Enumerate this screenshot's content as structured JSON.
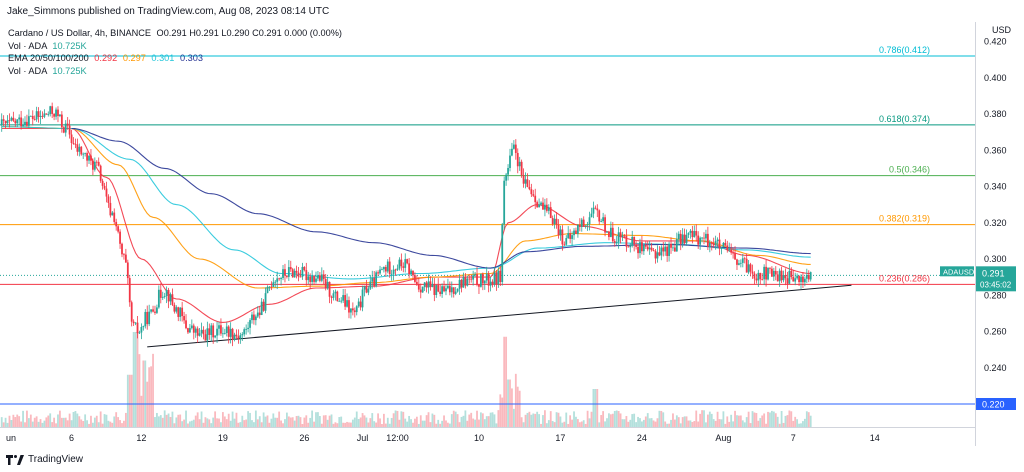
{
  "header": {
    "published_by": "Jake_Simmons published on TradingView.com, Aug 08, 2023 08:14 UTC"
  },
  "legend": {
    "symbol_line": "Cardano / US Dollar, 4h, BINANCE",
    "ohlc": "O0.291 H0.291 L0.290 C0.291 0.000 (0.00%)",
    "vol_label": "Vol · ADA",
    "vol_value": "10.725K",
    "ema_label": "EMA 20/50/100/200",
    "ema_values": [
      "0.292",
      "0.297",
      "0.301",
      "0.303"
    ],
    "vol2_label": "Vol · ADA",
    "vol2_value": "10.725K"
  },
  "footer": {
    "brand": "TradingView"
  },
  "chart_data": {
    "type": "candlestick",
    "symbol": "ADAUSD",
    "timeframe": "4h",
    "currency_label": "USD",
    "y_ticks": [
      0.22,
      0.24,
      0.26,
      0.28,
      0.3,
      0.32,
      0.34,
      0.36,
      0.38,
      0.4,
      0.42
    ],
    "ylim": [
      0.208,
      0.424
    ],
    "x_ticks": [
      "un",
      "6",
      "12",
      "19",
      "26",
      "Jul",
      "12:00",
      "10",
      "17",
      "24",
      "Aug",
      "7",
      "14"
    ],
    "x_tick_days": [
      0,
      4,
      10,
      17,
      24,
      29,
      32,
      39,
      46,
      53,
      60,
      66,
      73
    ],
    "x_last_day": 67.5,
    "x_range_days": [
      -2.2,
      83.8
    ],
    "last_price": {
      "label": "ADAUSD",
      "value": "0.291",
      "countdown": "03:45:02",
      "color": "#26a69a"
    },
    "support_line": {
      "value": "0.220",
      "color": "#2962ff"
    },
    "fibonacci": [
      {
        "label": "0.786(0.412)",
        "value": 0.412,
        "color": "#00bcd4"
      },
      {
        "label": "0.618(0.374)",
        "value": 0.374,
        "color": "#089981"
      },
      {
        "label": "0.5(0.346)",
        "value": 0.346,
        "color": "#4caf50"
      },
      {
        "label": "0.382(0.319)",
        "value": 0.319,
        "color": "#ff9800"
      },
      {
        "label": "0.236(0.286)",
        "value": 0.286,
        "color": "#f23645"
      }
    ],
    "trendline": {
      "from": [
        10.5,
        0.2515
      ],
      "to": [
        71.0,
        0.2855
      ]
    },
    "price_path": [
      [
        -2,
        0.374
      ],
      [
        1,
        0.378
      ],
      [
        2.5,
        0.381
      ],
      [
        3.5,
        0.372
      ],
      [
        4.5,
        0.36
      ],
      [
        6,
        0.352
      ],
      [
        7.5,
        0.325
      ],
      [
        8.5,
        0.3
      ],
      [
        9.3,
        0.262
      ],
      [
        9.8,
        0.26
      ],
      [
        10.5,
        0.268
      ],
      [
        12,
        0.283
      ],
      [
        13,
        0.272
      ],
      [
        14,
        0.262
      ],
      [
        15,
        0.258
      ],
      [
        17,
        0.261
      ],
      [
        18.5,
        0.258
      ],
      [
        20,
        0.27
      ],
      [
        21.5,
        0.29
      ],
      [
        23,
        0.293
      ],
      [
        25,
        0.29
      ],
      [
        27,
        0.278
      ],
      [
        28.3,
        0.27
      ],
      [
        29.5,
        0.285
      ],
      [
        31,
        0.295
      ],
      [
        32.5,
        0.297
      ],
      [
        34,
        0.285
      ],
      [
        36,
        0.282
      ],
      [
        38,
        0.288
      ],
      [
        40,
        0.288
      ],
      [
        40.8,
        0.29
      ],
      [
        41.2,
        0.345
      ],
      [
        42,
        0.36
      ],
      [
        43,
        0.34
      ],
      [
        45,
        0.325
      ],
      [
        46.5,
        0.31
      ],
      [
        48,
        0.32
      ],
      [
        49,
        0.325
      ],
      [
        50.5,
        0.313
      ],
      [
        52,
        0.31
      ],
      [
        53.5,
        0.303
      ],
      [
        55,
        0.305
      ],
      [
        57,
        0.313
      ],
      [
        59,
        0.31
      ],
      [
        60,
        0.305
      ],
      [
        61.5,
        0.297
      ],
      [
        63,
        0.292
      ],
      [
        65,
        0.291
      ],
      [
        66.5,
        0.288
      ],
      [
        67.5,
        0.291
      ]
    ],
    "ema_series": [
      {
        "name": "EMA 20",
        "color": "#f23645",
        "path": [
          [
            -2,
            0.372
          ],
          [
            4,
            0.372
          ],
          [
            7,
            0.345
          ],
          [
            10,
            0.3
          ],
          [
            13,
            0.278
          ],
          [
            17,
            0.265
          ],
          [
            21,
            0.275
          ],
          [
            25,
            0.284
          ],
          [
            30,
            0.285
          ],
          [
            35,
            0.29
          ],
          [
            40,
            0.29
          ],
          [
            41.5,
            0.32
          ],
          [
            44,
            0.33
          ],
          [
            48,
            0.318
          ],
          [
            53,
            0.31
          ],
          [
            58,
            0.31
          ],
          [
            62,
            0.302
          ],
          [
            67.5,
            0.292
          ]
        ]
      },
      {
        "name": "EMA 50",
        "color": "#ff9800",
        "path": [
          [
            -2,
            0.373
          ],
          [
            4,
            0.372
          ],
          [
            8,
            0.352
          ],
          [
            11,
            0.323
          ],
          [
            15,
            0.3
          ],
          [
            20,
            0.284
          ],
          [
            25,
            0.285
          ],
          [
            30,
            0.287
          ],
          [
            35,
            0.29
          ],
          [
            40,
            0.292
          ],
          [
            43,
            0.31
          ],
          [
            47,
            0.314
          ],
          [
            53,
            0.313
          ],
          [
            58,
            0.31
          ],
          [
            63,
            0.302
          ],
          [
            67.5,
            0.297
          ]
        ]
      },
      {
        "name": "EMA 100",
        "color": "#26c6da",
        "path": [
          [
            -2,
            0.373
          ],
          [
            4,
            0.372
          ],
          [
            9,
            0.355
          ],
          [
            13,
            0.33
          ],
          [
            18,
            0.305
          ],
          [
            22,
            0.292
          ],
          [
            28,
            0.289
          ],
          [
            34,
            0.292
          ],
          [
            40,
            0.295
          ],
          [
            44,
            0.306
          ],
          [
            50,
            0.309
          ],
          [
            56,
            0.308
          ],
          [
            62,
            0.305
          ],
          [
            67.5,
            0.301
          ]
        ]
      },
      {
        "name": "EMA 200",
        "color": "#283593",
        "path": [
          [
            4,
            0.372
          ],
          [
            8,
            0.365
          ],
          [
            12,
            0.35
          ],
          [
            16,
            0.336
          ],
          [
            20,
            0.325
          ],
          [
            25,
            0.315
          ],
          [
            30,
            0.309
          ],
          [
            35,
            0.302
          ],
          [
            40,
            0.295
          ],
          [
            43,
            0.304
          ],
          [
            48,
            0.307
          ],
          [
            55,
            0.308
          ],
          [
            62,
            0.306
          ],
          [
            67.5,
            0.303
          ]
        ]
      }
    ],
    "volume_spikes": [
      [
        9.5,
        1.0
      ],
      [
        10.2,
        0.7
      ],
      [
        9.0,
        0.55
      ],
      [
        41.2,
        0.95
      ],
      [
        41.6,
        0.5
      ],
      [
        49,
        0.4
      ]
    ]
  }
}
